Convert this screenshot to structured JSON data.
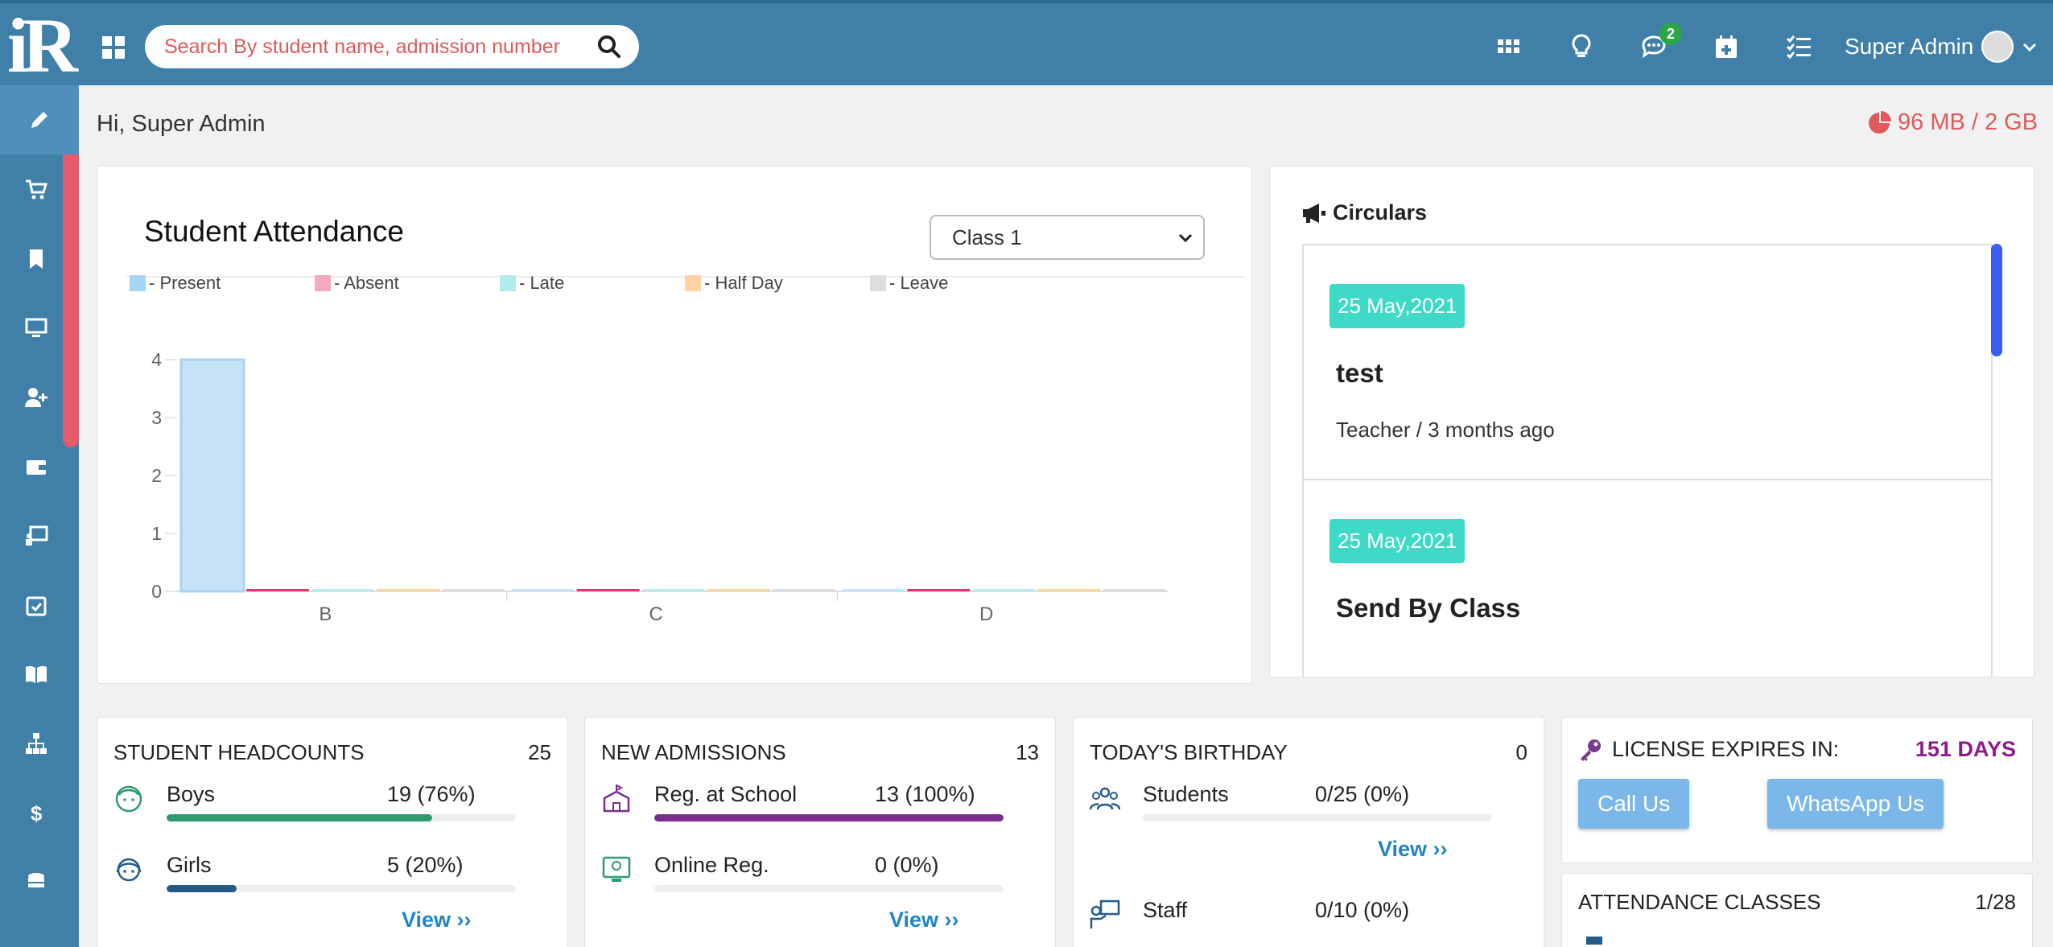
{
  "header": {
    "logo_text": "iR",
    "search_placeholder": "Search By student name, admission number",
    "messages_badge": "2",
    "user_name": "Super Admin"
  },
  "sidebar": {
    "items": [
      "pencil-icon",
      "cart-icon",
      "bookmark-icon",
      "monitor-icon",
      "user-plus-icon",
      "wallet-icon",
      "classroom-icon",
      "calendar-check-icon",
      "book-icon",
      "sitemap-icon",
      "dollar-icon",
      "coins-icon"
    ]
  },
  "greeting": "Hi, Super Admin",
  "storage": "96 MB / 2 GB",
  "attendance": {
    "title": "Student Attendance",
    "selected_class": "Class 1",
    "legend": [
      "- Present",
      "- Absent",
      "- Late",
      "- Half Day",
      "- Leave"
    ]
  },
  "chart_data": {
    "type": "bar",
    "categories": [
      "B",
      "C",
      "D"
    ],
    "series": [
      {
        "name": "Present",
        "values": [
          4,
          0,
          0
        ],
        "color": "#c6e2f7"
      },
      {
        "name": "Absent",
        "values": [
          0,
          0,
          0
        ],
        "color": "#e8336b"
      },
      {
        "name": "Late",
        "values": [
          0,
          0,
          0
        ],
        "color": "#b9ebf0"
      },
      {
        "name": "Half Day",
        "values": [
          0,
          0,
          0
        ],
        "color": "#ffd3a6"
      },
      {
        "name": "Leave",
        "values": [
          0,
          0,
          0
        ],
        "color": "#dedede"
      }
    ],
    "yticks": [
      "4",
      "3",
      "2",
      "1",
      "0"
    ],
    "ylim": [
      0,
      4
    ],
    "legend_position": "top-left"
  },
  "circulars": {
    "title": "Circulars",
    "items": [
      {
        "date": "25 May,2021",
        "title": "test",
        "meta": "Teacher / 3 months ago"
      },
      {
        "date": "25 May,2021",
        "title": "Send By Class",
        "meta": ""
      }
    ]
  },
  "headcounts": {
    "title": "STUDENT HEADCOUNTS",
    "total": "25",
    "rows": [
      {
        "label": "Boys",
        "value": "19 (76%)",
        "fraction": 0.76,
        "color": "#2e9b6e"
      },
      {
        "label": "Girls",
        "value": "5 (20%)",
        "fraction": 0.2,
        "color": "#245c88"
      }
    ],
    "view": "View ››"
  },
  "admissions": {
    "title": "NEW ADMISSIONS",
    "total": "13",
    "rows": [
      {
        "label": "Reg. at School",
        "value": "13 (100%)",
        "fraction": 1.0,
        "color": "#7a2d8e"
      },
      {
        "label": "Online Reg.",
        "value": "0 (0%)",
        "fraction": 0.0,
        "color": "#7a2d8e"
      }
    ],
    "view": "View ››"
  },
  "birthday": {
    "title": "TODAY'S BIRTHDAY",
    "total": "0",
    "rows": [
      {
        "label": "Students",
        "value": "0/25 (0%)",
        "fraction": 0.0
      },
      {
        "label": "Staff",
        "value": "0/10 (0%)",
        "fraction": 0.0
      }
    ],
    "view": "View ››"
  },
  "license": {
    "title": "LICENSE EXPIRES IN:",
    "days": "151 DAYS",
    "call": "Call Us",
    "whatsapp": "WhatsApp Us"
  },
  "attendance_classes": {
    "title": "ATTENDANCE CLASSES",
    "value": "1/28"
  }
}
